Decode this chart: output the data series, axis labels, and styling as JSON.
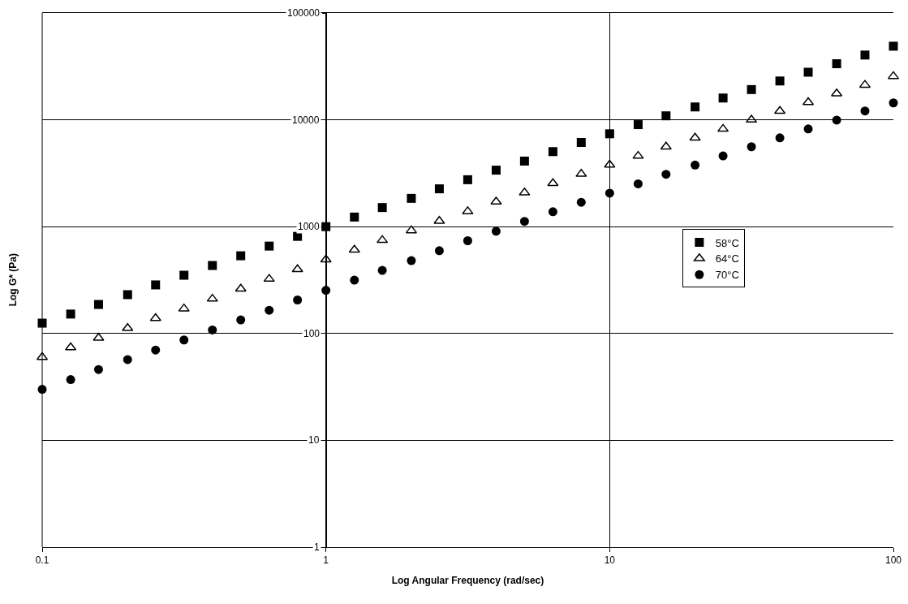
{
  "chart_data": {
    "type": "scatter",
    "xlabel": "Log Angular Frequency (rad/sec)",
    "ylabel": "Log G* (Pa)",
    "log": "xy",
    "grid": true,
    "legend": "right",
    "x": [
      0.1,
      0.126,
      0.158,
      0.2,
      0.251,
      0.316,
      0.398,
      0.501,
      0.631,
      0.794,
      1,
      1.26,
      1.58,
      2,
      2.51,
      3.16,
      3.98,
      5.01,
      6.31,
      7.94,
      10,
      12.6,
      15.8,
      20,
      25.1,
      31.6,
      39.8,
      50.1,
      63.1,
      79.4,
      100
    ],
    "xlim": [
      0.1,
      100
    ],
    "xticks": [
      0.1,
      1,
      10,
      100
    ],
    "ylim": [
      1,
      100000
    ],
    "yticks": [
      1,
      10,
      100,
      1000,
      10000,
      100000
    ],
    "series": [
      {
        "name": "58°C",
        "color": "#000000",
        "marker": "square",
        "values": [
          125,
          152,
          187,
          231,
          285,
          351,
          433,
          534,
          658,
          811,
          1000,
          1230,
          1510,
          1840,
          2260,
          2750,
          3380,
          4110,
          5040,
          6140,
          7400,
          9010,
          10900,
          13200,
          16000,
          19200,
          23100,
          27900,
          33500,
          40400,
          48900
        ]
      },
      {
        "name": "64°C",
        "color": "#000000",
        "marker": "triangle",
        "values": [
          60,
          74,
          91,
          112,
          139,
          171,
          211,
          262,
          324,
          399,
          492,
          606,
          747,
          921,
          1130,
          1390,
          1710,
          2080,
          2550,
          3110,
          3790,
          4590,
          5600,
          6780,
          8210,
          10000,
          12100,
          14600,
          17600,
          21200,
          25600
        ]
      },
      {
        "name": "70°C",
        "color": "#000000",
        "marker": "circle",
        "values": [
          30,
          37,
          46,
          57,
          70,
          87,
          108,
          134,
          165,
          206,
          254,
          316,
          390,
          481,
          596,
          739,
          906,
          1120,
          1380,
          1690,
          2060,
          2520,
          3090,
          3770,
          4590,
          5600,
          6780,
          8210,
          9950,
          12100,
          14400
        ]
      }
    ]
  }
}
